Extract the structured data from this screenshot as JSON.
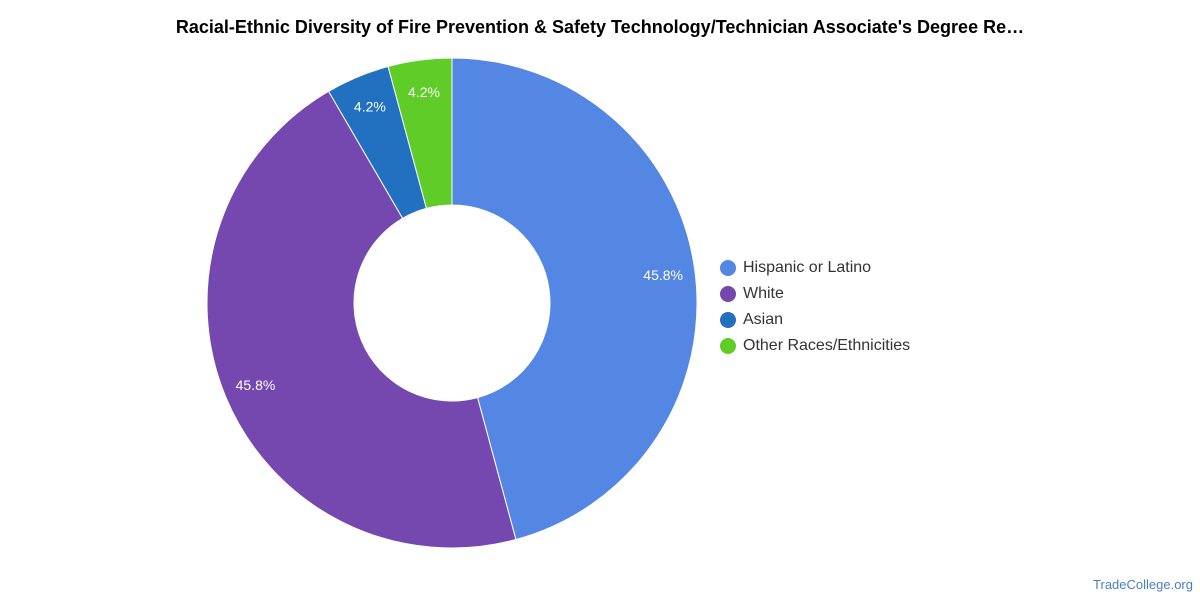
{
  "title": "Racial-Ethnic Diversity of Fire Prevention & Safety Technology/Technician Associate's Degree Re…",
  "watermark": "TradeCollege.org",
  "chart_data": {
    "type": "pie",
    "style": "donut",
    "legend_position": "right",
    "categories": [
      "Hispanic or Latino",
      "White",
      "Asian",
      "Other Races/Ethnicities"
    ],
    "values": [
      45.8,
      45.8,
      4.2,
      4.2
    ],
    "labels": [
      "45.8%",
      "45.8%",
      "4.2%",
      "4.2%"
    ],
    "colors": [
      "#5486e3",
      "#7548b0",
      "#2271c0",
      "#5fcc28"
    ]
  }
}
